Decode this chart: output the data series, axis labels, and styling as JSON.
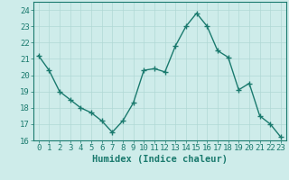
{
  "x": [
    0,
    1,
    2,
    3,
    4,
    5,
    6,
    7,
    8,
    9,
    10,
    11,
    12,
    13,
    14,
    15,
    16,
    17,
    18,
    19,
    20,
    21,
    22,
    23
  ],
  "y": [
    21.2,
    20.3,
    19.0,
    18.5,
    18.0,
    17.7,
    17.2,
    16.5,
    17.2,
    18.3,
    20.3,
    20.4,
    20.2,
    21.8,
    23.0,
    23.8,
    23.0,
    21.5,
    21.1,
    19.1,
    19.5,
    17.5,
    17.0,
    16.2
  ],
  "line_color": "#1a7a6e",
  "marker": "+",
  "markersize": 4,
  "linewidth": 1.0,
  "bg_color": "#ceecea",
  "grid_color": "#b0d8d5",
  "xlabel": "Humidex (Indice chaleur)",
  "ylim": [
    16,
    24.5
  ],
  "xlim": [
    -0.5,
    23.5
  ],
  "yticks": [
    16,
    17,
    18,
    19,
    20,
    21,
    22,
    23,
    24
  ],
  "xticks": [
    0,
    1,
    2,
    3,
    4,
    5,
    6,
    7,
    8,
    9,
    10,
    11,
    12,
    13,
    14,
    15,
    16,
    17,
    18,
    19,
    20,
    21,
    22,
    23
  ],
  "tick_fontsize": 6.5,
  "label_fontsize": 7.5,
  "tick_color": "#1a7a6e",
  "spine_color": "#1a7a6e"
}
